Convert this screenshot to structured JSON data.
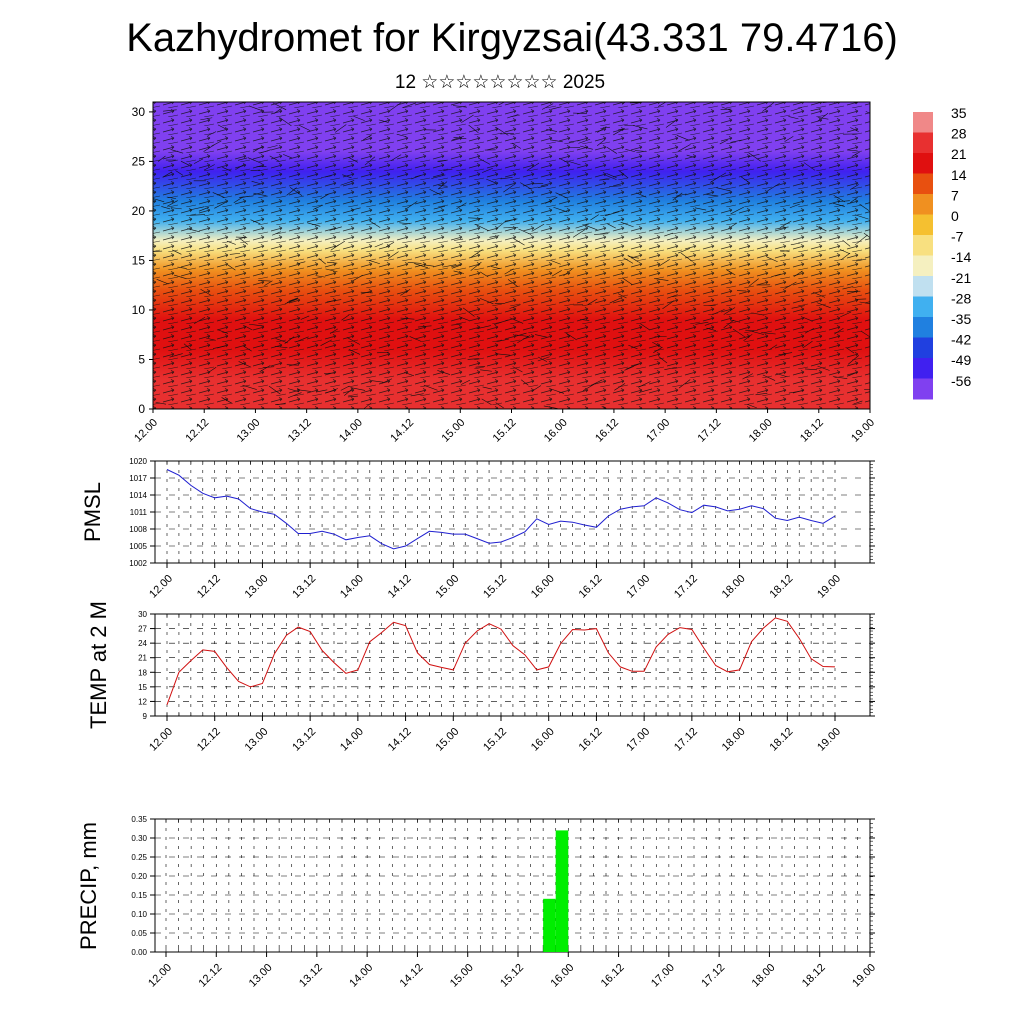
{
  "header": {
    "title": "Kazhydromet for Kirgyzsai(43.331 79.4716)",
    "subtitle": "12 ☆☆☆☆☆☆☆☆ 2025"
  },
  "colorbar": {
    "labels": [
      "35",
      "28",
      "21",
      "14",
      "7",
      "0",
      "-7",
      "-14",
      "-21",
      "-28",
      "-35",
      "-42",
      "-49",
      "-56"
    ],
    "colors": [
      "#f08888",
      "#e83030",
      "#e01010",
      "#e85010",
      "#f09020",
      "#f5c030",
      "#f8e080",
      "#f5f0c0",
      "#c0e0f0",
      "#40b0f0",
      "#2080e0",
      "#2040e0",
      "#4020f0",
      "#8040f0"
    ]
  },
  "time_ticks": [
    "12.00",
    "12.12",
    "13.00",
    "13.12",
    "14.00",
    "14.12",
    "15.00",
    "15.12",
    "16.00",
    "16.12",
    "17.00",
    "17.12",
    "18.00",
    "18.12",
    "19.00"
  ],
  "chart_data": [
    {
      "type": "heatmap",
      "title": "",
      "xlabel": "",
      "ylabel": "",
      "x_ticks": [
        "12.00",
        "12.12",
        "13.00",
        "13.12",
        "14.00",
        "14.12",
        "15.00",
        "15.12",
        "16.00",
        "16.12",
        "17.00",
        "17.12",
        "18.00",
        "18.12",
        "19.00"
      ],
      "y_ticks": [
        0,
        5,
        10,
        15,
        20,
        25,
        30
      ],
      "ylim": [
        0,
        31
      ],
      "value_range": [
        -60,
        35
      ],
      "note_bands": [
        {
          "level": 0,
          "value": 30
        },
        {
          "level": 3,
          "value": 26
        },
        {
          "level": 6,
          "value": 22
        },
        {
          "level": 9,
          "value": 18
        },
        {
          "level": 12,
          "value": 12
        },
        {
          "level": 14,
          "value": 5
        },
        {
          "level": 16,
          "value": -5
        },
        {
          "level": 17,
          "value": -15
        },
        {
          "level": 19,
          "value": -25
        },
        {
          "level": 21,
          "value": -35
        },
        {
          "level": 24,
          "value": -50
        },
        {
          "level": 26,
          "value": -58
        },
        {
          "level": 28,
          "value": -55
        },
        {
          "level": 31,
          "value": -55
        }
      ]
    },
    {
      "type": "line",
      "ylabel": "PMSL",
      "ylim": [
        1002,
        1020
      ],
      "y_ticks": [
        1002,
        1005,
        1008,
        1011,
        1014,
        1017,
        1020
      ],
      "x_start": 0,
      "x_step_hours": 3,
      "series": [
        {
          "color": "#1f1fd0",
          "values": [
            1018.5,
            1017.5,
            1015.7,
            1014.3,
            1013.5,
            1013.8,
            1013.3,
            1011.6,
            1011.0,
            1010.6,
            1009.0,
            1007.2,
            1007.2,
            1007.6,
            1007.1,
            1006.1,
            1006.5,
            1006.8,
            1005.4,
            1004.5,
            1005.0,
            1006.3,
            1007.6,
            1007.4,
            1007.1,
            1007.1,
            1006.3,
            1005.5,
            1005.7,
            1006.5,
            1007.5,
            1009.8,
            1008.8,
            1009.4,
            1009.2,
            1008.7,
            1008.3,
            1010.3,
            1011.5,
            1011.9,
            1012.1,
            1013.5,
            1012.6,
            1011.4,
            1010.9,
            1012.2,
            1011.9,
            1011.2,
            1011.5,
            1012.1,
            1011.6,
            1009.9,
            1009.5,
            1010.1,
            1009.5,
            1009.0,
            1010.3
          ]
        }
      ]
    },
    {
      "type": "line",
      "ylabel": "TEMP at 2 M",
      "ylim": [
        9,
        30
      ],
      "y_ticks": [
        9,
        12,
        15,
        18,
        21,
        24,
        27,
        30
      ],
      "x_start": 0,
      "x_step_hours": 3,
      "series": [
        {
          "color": "#d01010",
          "values": [
            11.3,
            18.0,
            20.4,
            22.6,
            22.3,
            19.0,
            16.1,
            15.0,
            15.7,
            21.8,
            25.6,
            27.3,
            26.4,
            22.5,
            20.0,
            17.8,
            18.5,
            24.3,
            26.2,
            28.3,
            27.6,
            22.0,
            19.6,
            19.0,
            18.5,
            24.0,
            26.5,
            28.0,
            26.9,
            23.5,
            21.6,
            18.5,
            19.1,
            23.9,
            26.8,
            26.7,
            27.0,
            22.0,
            19.1,
            18.2,
            18.2,
            23.2,
            25.8,
            27.2,
            26.8,
            23.0,
            19.4,
            18.1,
            18.5,
            24.3,
            27.1,
            29.2,
            28.5,
            25.0,
            20.8,
            19.2,
            19.1
          ]
        }
      ]
    },
    {
      "type": "bar",
      "ylabel": "PRECIP, mm",
      "ylim": [
        0,
        0.35
      ],
      "y_ticks": [
        "0.00",
        "0.05",
        "0.10",
        "0.15",
        "0.20",
        "0.25",
        "0.30",
        "0.35"
      ],
      "bars": [
        {
          "hour": 93,
          "value": 0.14
        },
        {
          "hour": 96,
          "value": 0.32
        }
      ],
      "color": "#00ee00"
    }
  ]
}
